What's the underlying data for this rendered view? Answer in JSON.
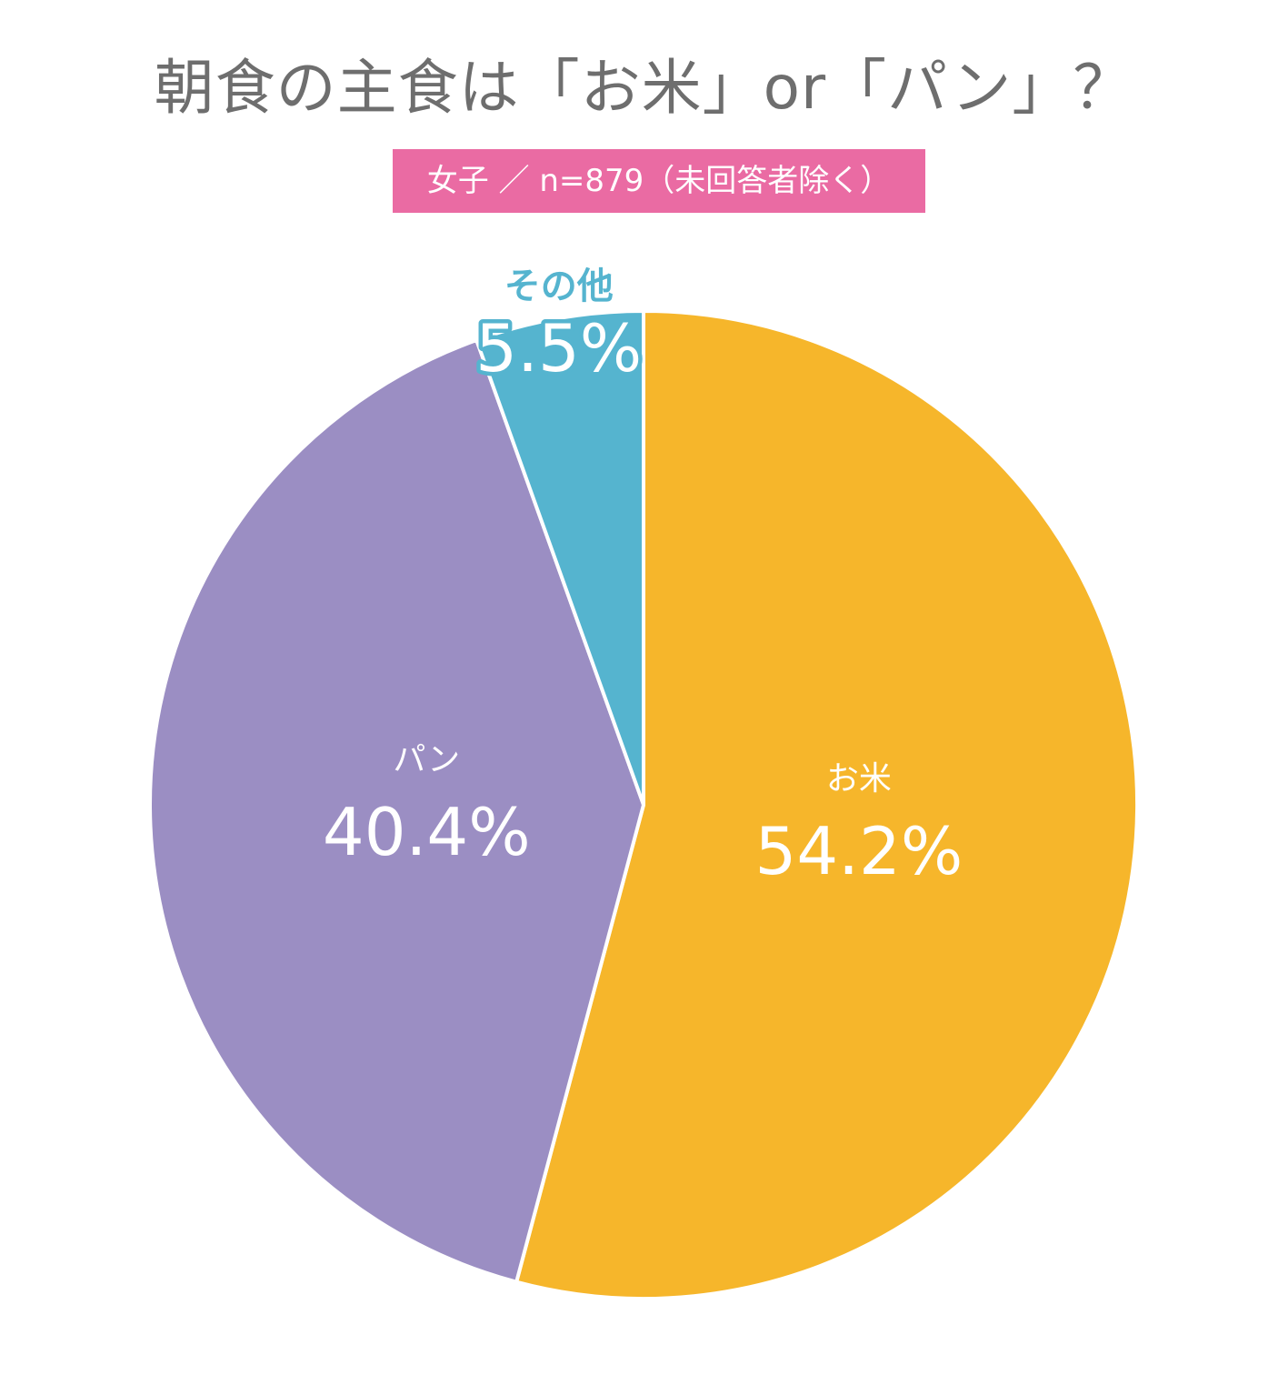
{
  "chart_data": {
    "type": "pie",
    "title": "朝食の主食は「お米」or「パン」？",
    "subtitle": "女子 ／ n=879（未回答者除く）",
    "slices": [
      {
        "label": "お米",
        "value": 54.2,
        "value_label": "54.2%",
        "color": "#f6b62b"
      },
      {
        "label": "パン",
        "value": 40.4,
        "value_label": "40.4%",
        "color": "#9b8ec3"
      },
      {
        "label": "その他",
        "value": 5.5,
        "value_label": "5.5%",
        "color": "#55b4cf"
      }
    ],
    "start_angle": "12 o'clock",
    "direction": "clockwise",
    "legend": "none"
  }
}
